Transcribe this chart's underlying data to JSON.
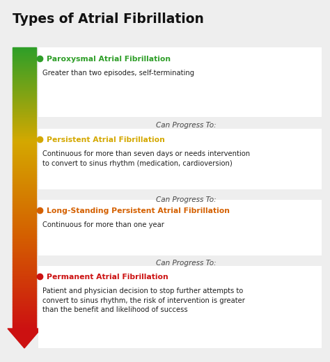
{
  "title": "Types of Atrial Fibrillation",
  "background_color": "#eeeeee",
  "title_color": "#111111",
  "title_fontsize": 13.5,
  "sections": [
    {
      "heading": "Paroxysmal Atrial Fibrillation",
      "heading_color": "#2e9e28",
      "dot_color": "#2e9e28",
      "body": "Greater than two episodes, self-terminating",
      "body_color": "#222222"
    },
    {
      "heading": "Persistent Atrial Fibrillation",
      "heading_color": "#d4a800",
      "dot_color": "#d4a800",
      "body": "Continuous for more than seven days or needs intervention\nto convert to sinus rhythm (medication, cardioversion)",
      "body_color": "#222222"
    },
    {
      "heading": "Long-Standing Persistent Atrial Fibrillation",
      "heading_color": "#d46000",
      "dot_color": "#d46000",
      "body": "Continuous for more than one year",
      "body_color": "#222222"
    },
    {
      "heading": "Permanent Atrial Fibrillation",
      "heading_color": "#cc1111",
      "dot_color": "#cc1111",
      "body": "Patient and physician decision to stop further attempts to\nconvert to sinus rhythm, the risk of intervention is greater\nthan the benefit and likelihood of success",
      "body_color": "#222222"
    }
  ],
  "progress_text": "Can Progress To:",
  "progress_color": "#444444",
  "grad_top": "#2e9e28",
  "grad_mid1": "#d4a800",
  "grad_mid2": "#d46000",
  "grad_bot": "#cc1111"
}
